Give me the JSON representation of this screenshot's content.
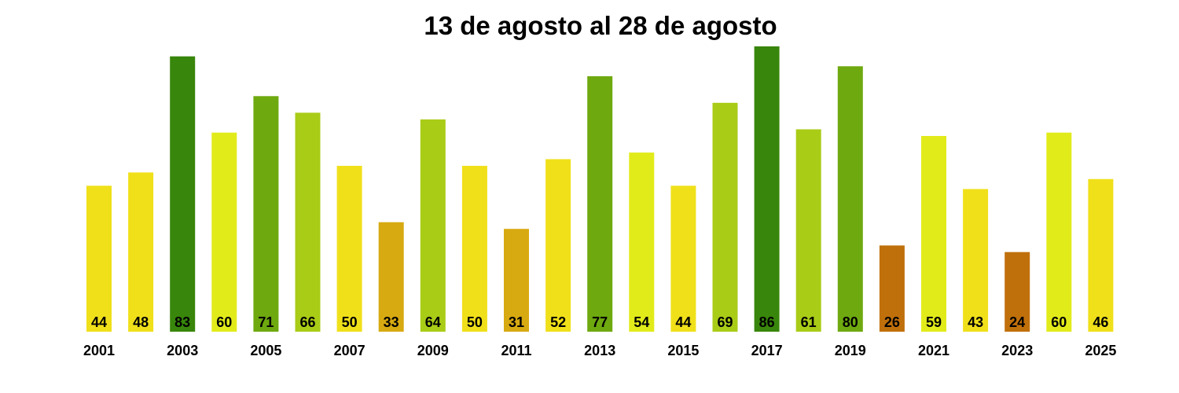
{
  "chart_data": {
    "type": "bar",
    "title": "13 de agosto al 28 de agosto",
    "xlabel": "",
    "ylabel": "",
    "categories": [
      "2001",
      "2002",
      "2003",
      "2004",
      "2005",
      "2006",
      "2007",
      "2008",
      "2009",
      "2010",
      "2011",
      "2012",
      "2013",
      "2014",
      "2015",
      "2016",
      "2017",
      "2018",
      "2019",
      "2020",
      "2021",
      "2022",
      "2023",
      "2024",
      "2025"
    ],
    "values": [
      44,
      48,
      83,
      60,
      71,
      66,
      50,
      33,
      64,
      50,
      31,
      52,
      77,
      54,
      44,
      69,
      86,
      61,
      80,
      26,
      59,
      43,
      24,
      60,
      46
    ],
    "tick_labels": [
      "2001",
      "2003",
      "2005",
      "2007",
      "2009",
      "2011",
      "2013",
      "2015",
      "2017",
      "2019",
      "2021",
      "2023",
      "2025"
    ],
    "ylim": [
      0,
      86
    ],
    "grid": false,
    "colors": [
      "#f0e01a",
      "#f0e01a",
      "#38860b",
      "#e2eb1a",
      "#6ea90f",
      "#a9cc17",
      "#f0e01a",
      "#d8aa11",
      "#a9cc17",
      "#f0e01a",
      "#d8aa11",
      "#f0e01a",
      "#6ea90f",
      "#e2eb1a",
      "#f0e01a",
      "#a9cc17",
      "#38860b",
      "#a9cc17",
      "#6ea90f",
      "#c0700b",
      "#e2eb1a",
      "#f0e01a",
      "#c0700b",
      "#e2eb1a",
      "#f0e01a"
    ]
  }
}
